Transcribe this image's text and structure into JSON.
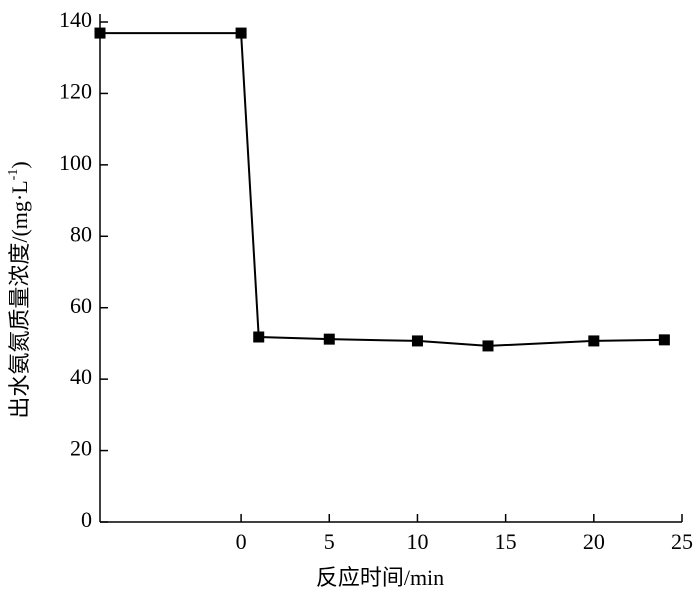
{
  "chart_data": {
    "type": "line",
    "x_label": "反应时间/min",
    "y_label_parts": [
      "出水氨氮质量浓度/(mg·L",
      "-1",
      ")"
    ],
    "x": [
      -8,
      0,
      1,
      5,
      10,
      14,
      20,
      24
    ],
    "values": [
      136.9,
      136.9,
      51.8,
      51.2,
      50.7,
      49.3,
      50.7,
      51
    ],
    "color": "#000000",
    "xlim": [
      -8,
      25
    ],
    "xticks": [
      0,
      5,
      10,
      15,
      20,
      25
    ],
    "ylim": [
      0,
      140
    ],
    "yticks": [
      0,
      20,
      40,
      60,
      80,
      100,
      120,
      140
    ]
  }
}
